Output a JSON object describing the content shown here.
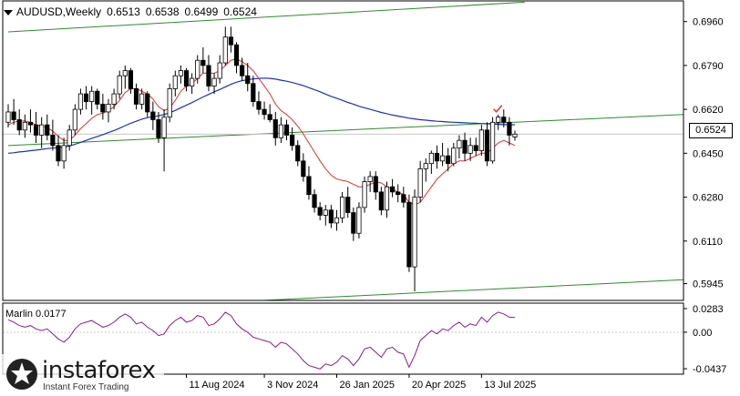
{
  "symbol": "AUDUSD,Weekly",
  "ohlc": {
    "open": "0.6513",
    "high": "0.6538",
    "low": "0.6499",
    "close": "0.6524"
  },
  "current_price": "0.6524",
  "indicator": {
    "name": "Marlin",
    "value": "0.0177"
  },
  "logo": {
    "name": "instaforex",
    "tagline": "Instant Forex Trading"
  },
  "colors": {
    "candle_up": "#ffffff",
    "candle_down": "#000000",
    "ma_fast": "#e03131",
    "ma_slow": "#1f2fbf",
    "channel": "#2e8b2e",
    "oscillator": "#8b1a8b",
    "signal_mark": "#e03131"
  },
  "chart_data": [
    {
      "type": "candlestick",
      "title": "AUDUSD,Weekly",
      "ylim": [
        0.588,
        0.704
      ],
      "y_ticks": [
        "0.6960",
        "0.6790",
        "0.6620",
        "0.6450",
        "0.6280",
        "0.6110",
        "0.5945"
      ],
      "x_tick_labels": [
        "11 Aug 2024",
        "3 Nov 2024",
        "26 Jan 2025",
        "20 Apr 2025",
        "13 Jul 2025"
      ],
      "candles": [
        [
          0.657,
          0.664,
          0.655,
          0.661
        ],
        [
          0.661,
          0.666,
          0.656,
          0.658
        ],
        [
          0.658,
          0.662,
          0.652,
          0.654
        ],
        [
          0.654,
          0.66,
          0.651,
          0.657
        ],
        [
          0.657,
          0.662,
          0.653,
          0.656
        ],
        [
          0.656,
          0.661,
          0.649,
          0.652
        ],
        [
          0.652,
          0.659,
          0.647,
          0.656
        ],
        [
          0.656,
          0.66,
          0.65,
          0.652
        ],
        [
          0.652,
          0.658,
          0.646,
          0.648
        ],
        [
          0.648,
          0.652,
          0.64,
          0.642
        ],
        [
          0.642,
          0.651,
          0.639,
          0.648
        ],
        [
          0.648,
          0.656,
          0.646,
          0.654
        ],
        [
          0.654,
          0.664,
          0.652,
          0.662
        ],
        [
          0.662,
          0.67,
          0.66,
          0.668
        ],
        [
          0.668,
          0.671,
          0.662,
          0.665
        ],
        [
          0.665,
          0.671,
          0.66,
          0.669
        ],
        [
          0.669,
          0.67,
          0.662,
          0.664
        ],
        [
          0.664,
          0.668,
          0.658,
          0.661
        ],
        [
          0.661,
          0.666,
          0.657,
          0.664
        ],
        [
          0.664,
          0.67,
          0.662,
          0.668
        ],
        [
          0.668,
          0.677,
          0.666,
          0.675
        ],
        [
          0.675,
          0.679,
          0.67,
          0.677
        ],
        [
          0.677,
          0.678,
          0.668,
          0.67
        ],
        [
          0.67,
          0.672,
          0.662,
          0.664
        ],
        [
          0.664,
          0.67,
          0.662,
          0.668
        ],
        [
          0.668,
          0.669,
          0.659,
          0.661
        ],
        [
          0.661,
          0.665,
          0.654,
          0.658
        ],
        [
          0.658,
          0.661,
          0.649,
          0.651
        ],
        [
          0.651,
          0.662,
          0.638,
          0.659
        ],
        [
          0.659,
          0.672,
          0.657,
          0.67
        ],
        [
          0.67,
          0.677,
          0.667,
          0.675
        ],
        [
          0.675,
          0.679,
          0.672,
          0.677
        ],
        [
          0.677,
          0.678,
          0.669,
          0.671
        ],
        [
          0.671,
          0.676,
          0.668,
          0.674
        ],
        [
          0.674,
          0.683,
          0.672,
          0.681
        ],
        [
          0.681,
          0.686,
          0.676,
          0.679
        ],
        [
          0.679,
          0.683,
          0.669,
          0.671
        ],
        [
          0.671,
          0.676,
          0.668,
          0.674
        ],
        [
          0.674,
          0.683,
          0.672,
          0.68
        ],
        [
          0.68,
          0.694,
          0.679,
          0.69
        ],
        [
          0.69,
          0.694,
          0.684,
          0.687
        ],
        [
          0.687,
          0.688,
          0.676,
          0.679
        ],
        [
          0.679,
          0.682,
          0.673,
          0.675
        ],
        [
          0.675,
          0.68,
          0.669,
          0.672
        ],
        [
          0.672,
          0.675,
          0.663,
          0.665
        ],
        [
          0.665,
          0.669,
          0.66,
          0.662
        ],
        [
          0.662,
          0.665,
          0.658,
          0.66
        ],
        [
          0.66,
          0.664,
          0.657,
          0.658
        ],
        [
          0.658,
          0.661,
          0.648,
          0.651
        ],
        [
          0.651,
          0.659,
          0.649,
          0.656
        ],
        [
          0.656,
          0.658,
          0.65,
          0.652
        ],
        [
          0.652,
          0.655,
          0.646,
          0.648
        ],
        [
          0.648,
          0.65,
          0.64,
          0.642
        ],
        [
          0.642,
          0.645,
          0.634,
          0.636
        ],
        [
          0.636,
          0.64,
          0.627,
          0.629
        ],
        [
          0.629,
          0.631,
          0.622,
          0.624
        ],
        [
          0.624,
          0.626,
          0.619,
          0.621
        ],
        [
          0.621,
          0.625,
          0.617,
          0.623
        ],
        [
          0.623,
          0.625,
          0.616,
          0.618
        ],
        [
          0.618,
          0.623,
          0.615,
          0.62
        ],
        [
          0.62,
          0.63,
          0.618,
          0.628
        ],
        [
          0.628,
          0.632,
          0.62,
          0.622
        ],
        [
          0.622,
          0.624,
          0.611,
          0.614
        ],
        [
          0.614,
          0.626,
          0.612,
          0.624
        ],
        [
          0.624,
          0.636,
          0.622,
          0.634
        ],
        [
          0.634,
          0.638,
          0.63,
          0.636
        ],
        [
          0.636,
          0.638,
          0.627,
          0.63
        ],
        [
          0.63,
          0.632,
          0.621,
          0.623
        ],
        [
          0.623,
          0.634,
          0.62,
          0.632
        ],
        [
          0.632,
          0.635,
          0.628,
          0.63
        ],
        [
          0.63,
          0.633,
          0.626,
          0.629
        ],
        [
          0.629,
          0.632,
          0.624,
          0.626
        ],
        [
          0.626,
          0.629,
          0.599,
          0.601
        ],
        [
          0.601,
          0.631,
          0.5915,
          0.628
        ],
        [
          0.628,
          0.642,
          0.626,
          0.639
        ],
        [
          0.639,
          0.643,
          0.634,
          0.641
        ],
        [
          0.641,
          0.646,
          0.637,
          0.645
        ],
        [
          0.645,
          0.648,
          0.639,
          0.642
        ],
        [
          0.642,
          0.649,
          0.64,
          0.644
        ],
        [
          0.644,
          0.647,
          0.638,
          0.641
        ],
        [
          0.641,
          0.649,
          0.64,
          0.647
        ],
        [
          0.647,
          0.652,
          0.643,
          0.65
        ],
        [
          0.65,
          0.653,
          0.642,
          0.645
        ],
        [
          0.645,
          0.651,
          0.642,
          0.648
        ],
        [
          0.648,
          0.651,
          0.644,
          0.646
        ],
        [
          0.646,
          0.656,
          0.644,
          0.654
        ],
        [
          0.654,
          0.657,
          0.64,
          0.642
        ],
        [
          0.642,
          0.659,
          0.641,
          0.657
        ],
        [
          0.657,
          0.66,
          0.654,
          0.659
        ],
        [
          0.659,
          0.662,
          0.655,
          0.657
        ],
        [
          0.657,
          0.659,
          0.648,
          0.652
        ],
        [
          0.6513,
          0.6538,
          0.6499,
          0.6524
        ]
      ],
      "ma_fast": [
        0.656,
        0.657,
        0.6575,
        0.6575,
        0.657,
        0.656,
        0.6555,
        0.655,
        0.6535,
        0.6515,
        0.65,
        0.65,
        0.652,
        0.6545,
        0.6565,
        0.6585,
        0.66,
        0.6605,
        0.6615,
        0.663,
        0.6655,
        0.6685,
        0.67,
        0.67,
        0.669,
        0.668,
        0.666,
        0.663,
        0.6615,
        0.6625,
        0.6655,
        0.669,
        0.671,
        0.672,
        0.674,
        0.676,
        0.676,
        0.676,
        0.677,
        0.679,
        0.681,
        0.6815,
        0.6805,
        0.679,
        0.677,
        0.674,
        0.671,
        0.668,
        0.664,
        0.6615,
        0.66,
        0.658,
        0.6555,
        0.6525,
        0.649,
        0.6455,
        0.642,
        0.639,
        0.6365,
        0.635,
        0.6345,
        0.634,
        0.633,
        0.632,
        0.632,
        0.633,
        0.634,
        0.6335,
        0.632,
        0.631,
        0.63,
        0.629,
        0.626,
        0.625,
        0.626,
        0.629,
        0.632,
        0.635,
        0.637,
        0.639,
        0.641,
        0.642,
        0.642,
        0.643,
        0.644,
        0.645,
        0.645,
        0.647,
        0.649,
        0.65,
        0.649,
        0.648
      ],
      "ma_slow": [
        0.645,
        0.6452,
        0.6455,
        0.6457,
        0.646,
        0.6462,
        0.6465,
        0.6468,
        0.647,
        0.6472,
        0.6474,
        0.6478,
        0.6485,
        0.6492,
        0.65,
        0.6508,
        0.6515,
        0.6522,
        0.653,
        0.6538,
        0.6547,
        0.6557,
        0.6566,
        0.6574,
        0.6582,
        0.6588,
        0.6592,
        0.6595,
        0.66,
        0.6607,
        0.6616,
        0.6626,
        0.6636,
        0.6646,
        0.6657,
        0.6668,
        0.6678,
        0.6688,
        0.6697,
        0.6707,
        0.6717,
        0.6725,
        0.6731,
        0.6735,
        0.6738,
        0.674,
        0.6741,
        0.674,
        0.6737,
        0.6733,
        0.6729,
        0.6724,
        0.6718,
        0.6712,
        0.6704,
        0.6696,
        0.6688,
        0.6679,
        0.667,
        0.6663,
        0.6655,
        0.6647,
        0.664,
        0.6632,
        0.6626,
        0.662,
        0.6614,
        0.6608,
        0.6603,
        0.6598,
        0.6594,
        0.659,
        0.6586,
        0.6583,
        0.658,
        0.6578,
        0.6576,
        0.6574,
        0.6573,
        0.6571,
        0.657,
        0.6569,
        0.6568,
        0.6567,
        0.6566,
        0.6565,
        0.6564,
        0.6563,
        0.6562,
        0.6561,
        0.6561,
        0.656
      ],
      "channel_upper": [
        [
          0,
          0.692
        ],
        [
          91,
          0.7035
        ]
      ],
      "channel_middle": [
        [
          0,
          0.648
        ],
        [
          119,
          0.66
        ]
      ],
      "channel_lower": [
        [
          45,
          0.588
        ],
        [
          119,
          0.596
        ]
      ],
      "oscillator": {
        "name": "Marlin",
        "value": "0.0177",
        "ylim": [
          -0.0437,
          0.0283
        ],
        "y_ticks": [
          "0.0283",
          "0.00",
          "-0.0437"
        ],
        "values": [
          0.015,
          0.012,
          0.008,
          0.006,
          0.008,
          0.004,
          0.002,
          0.004,
          -0.002,
          -0.008,
          -0.012,
          -0.006,
          0.004,
          0.01,
          0.012,
          0.014,
          0.01,
          0.006,
          0.008,
          0.012,
          0.018,
          0.022,
          0.018,
          0.01,
          0.012,
          0.006,
          0.002,
          -0.004,
          -0.002,
          0.008,
          0.014,
          0.018,
          0.012,
          0.014,
          0.02,
          0.018,
          0.008,
          0.01,
          0.016,
          0.024,
          0.02,
          0.01,
          0.004,
          0.0,
          -0.006,
          -0.008,
          -0.01,
          -0.012,
          -0.018,
          -0.012,
          -0.014,
          -0.02,
          -0.026,
          -0.034,
          -0.04,
          -0.042,
          -0.044,
          -0.038,
          -0.04,
          -0.036,
          -0.028,
          -0.032,
          -0.04,
          -0.032,
          -0.02,
          -0.018,
          -0.024,
          -0.03,
          -0.02,
          -0.018,
          -0.024,
          -0.026,
          -0.042,
          -0.028,
          -0.01,
          -0.004,
          0.002,
          -0.002,
          0.004,
          0.002,
          0.008,
          0.012,
          0.006,
          0.01,
          0.008,
          0.018,
          0.012,
          0.02,
          0.024,
          0.022,
          0.018,
          0.0177
        ]
      }
    }
  ]
}
